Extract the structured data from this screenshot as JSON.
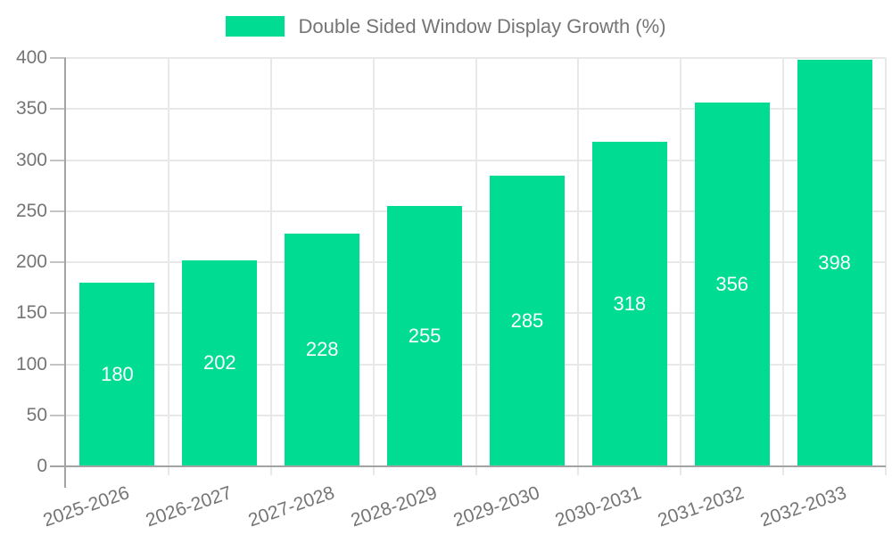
{
  "legend": {
    "label": "Double Sided Window Display Growth (%)"
  },
  "colors": {
    "bar": "#00dc92",
    "grid": "#e8e8e8",
    "axis": "#a3a3a3",
    "tick": "#c4c4c4",
    "axis_label": "#757575",
    "value_label": "#ffffff",
    "background": "#ffffff"
  },
  "chart_data": {
    "type": "bar",
    "title": "Double Sided Window Display Growth (%)",
    "categories": [
      "2025-2026",
      "2026-2027",
      "2027-2028",
      "2028-2029",
      "2029-2030",
      "2030-2031",
      "2031-2032",
      "2032-2033"
    ],
    "values": [
      180,
      202,
      228,
      255,
      285,
      318,
      356,
      398
    ],
    "xlabel": "",
    "ylabel": "",
    "ylim": [
      0,
      400
    ],
    "ytick_step": 50,
    "ytick_labels": [
      "0",
      "50",
      "100",
      "150",
      "200",
      "250",
      "300",
      "350",
      "400"
    ],
    "grid": true,
    "legend_position": "top",
    "bar_value_labels": true
  }
}
